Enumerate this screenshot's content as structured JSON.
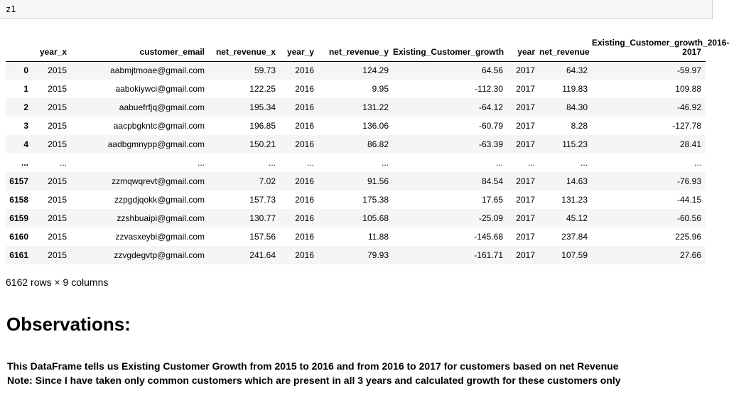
{
  "code_cell": {
    "text": "z1"
  },
  "dataframe": {
    "columns": [
      "",
      "year_x",
      "customer_email",
      "net_revenue_x",
      "year_y",
      "net_revenue_y",
      "Existing_Customer_growth",
      "year",
      "net_revenue",
      "Existing_Customer_growth_2016-2017"
    ],
    "rows": [
      [
        "0",
        "2015",
        "aabmjtmoae@gmail.com",
        "59.73",
        "2016",
        "124.29",
        "64.56",
        "2017",
        "64.32",
        "-59.97"
      ],
      [
        "1",
        "2015",
        "aabokiywci@gmail.com",
        "122.25",
        "2016",
        "9.95",
        "-112.30",
        "2017",
        "119.83",
        "109.88"
      ],
      [
        "2",
        "2015",
        "aabuefrfjq@gmail.com",
        "195.34",
        "2016",
        "131.22",
        "-64.12",
        "2017",
        "84.30",
        "-46.92"
      ],
      [
        "3",
        "2015",
        "aacpbgkntc@gmail.com",
        "196.85",
        "2016",
        "136.06",
        "-60.79",
        "2017",
        "8.28",
        "-127.78"
      ],
      [
        "4",
        "2015",
        "aadbgmnypp@gmail.com",
        "150.21",
        "2016",
        "86.82",
        "-63.39",
        "2017",
        "115.23",
        "28.41"
      ],
      [
        "...",
        "...",
        "...",
        "...",
        "...",
        "...",
        "...",
        "...",
        "...",
        "..."
      ],
      [
        "6157",
        "2015",
        "zzmqwqrevt@gmail.com",
        "7.02",
        "2016",
        "91.56",
        "84.54",
        "2017",
        "14.63",
        "-76.93"
      ],
      [
        "6158",
        "2015",
        "zzpgdjqokk@gmail.com",
        "157.73",
        "2016",
        "175.38",
        "17.65",
        "2017",
        "131.23",
        "-44.15"
      ],
      [
        "6159",
        "2015",
        "zzshbuaipi@gmail.com",
        "130.77",
        "2016",
        "105.68",
        "-25.09",
        "2017",
        "45.12",
        "-60.56"
      ],
      [
        "6160",
        "2015",
        "zzvasxeybi@gmail.com",
        "157.56",
        "2016",
        "11.88",
        "-145.68",
        "2017",
        "237.84",
        "225.96"
      ],
      [
        "6161",
        "2015",
        "zzvgdegvtp@gmail.com",
        "241.64",
        "2016",
        "79.93",
        "-161.71",
        "2017",
        "107.59",
        "27.66"
      ]
    ],
    "shape_text": "6162 rows × 9 columns"
  },
  "observations": {
    "title": "Observations:",
    "line1": "This DataFrame tells us Existing Customer Growth from 2015 to 2016 and from 2016 to 2017 for customers based on net Revenue",
    "line2": "Note: Since I have taken only common customers which are present in all 3 years and calculated growth for these customers only"
  }
}
